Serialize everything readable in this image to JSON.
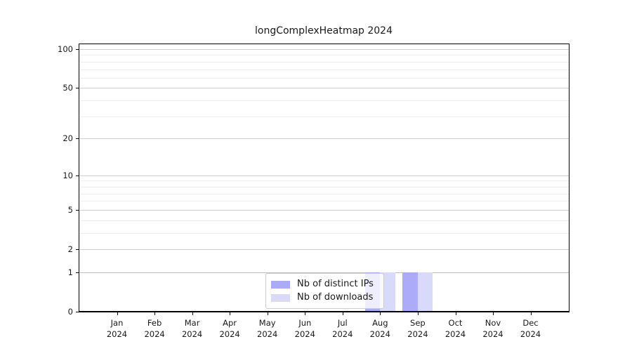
{
  "chart_data": {
    "type": "bar",
    "title": "longComplexHeatmap 2024",
    "x_months": [
      "Jan",
      "Feb",
      "Mar",
      "Apr",
      "May",
      "Jun",
      "Jul",
      "Aug",
      "Sep",
      "Oct",
      "Nov",
      "Dec"
    ],
    "x_year": "2024",
    "series": [
      {
        "name": "Nb of distinct IPs",
        "color": "#ababfa",
        "values": [
          0,
          0,
          0,
          0,
          0,
          0,
          0,
          1,
          1,
          0,
          0,
          0
        ]
      },
      {
        "name": "Nb of downloads",
        "color": "#d9d9fa",
        "values": [
          0,
          0,
          0,
          0,
          0,
          0,
          0,
          1,
          1,
          0,
          0,
          0
        ]
      }
    ],
    "y_scale": "log1p",
    "y_major_ticks": [
      0,
      1,
      2,
      5,
      10,
      20,
      50,
      100
    ],
    "y_minor_gridlines": [
      3,
      4,
      6,
      7,
      8,
      9,
      30,
      40,
      60,
      70,
      80,
      90
    ],
    "ylim": [
      0,
      110
    ],
    "grid": "horizontal",
    "legend_position": "inside-bottom-center",
    "colors": {
      "major_grid": "#cccccc",
      "unit_grid": "#bbbbbb",
      "minor_grid": "#ededed",
      "axis": "#000000",
      "text": "#1a1a1a",
      "legend_border": "#cccccc",
      "background": "#ffffff"
    }
  }
}
